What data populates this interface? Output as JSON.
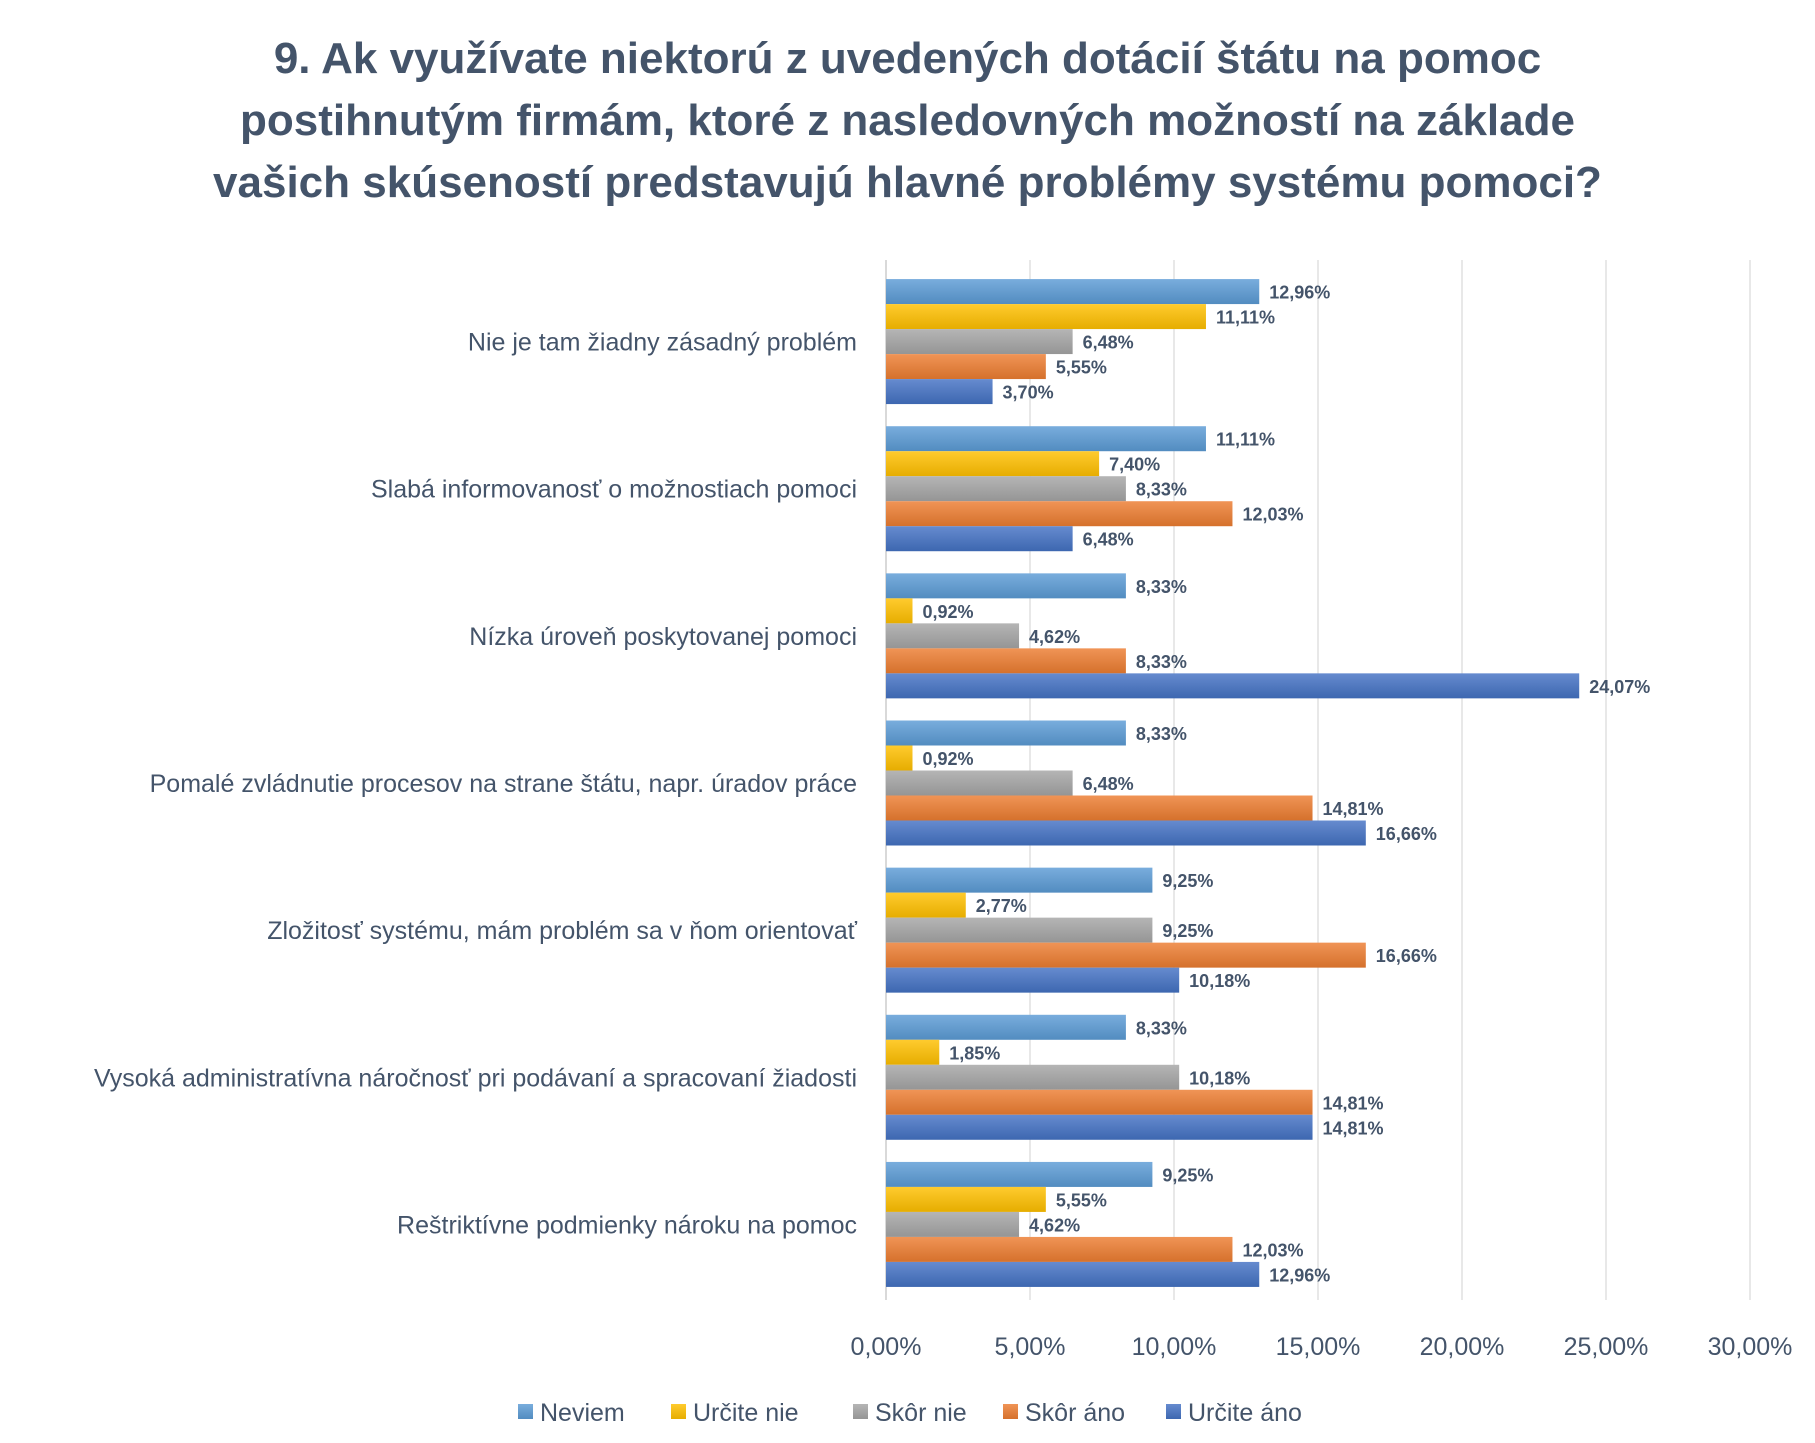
{
  "chart_data": {
    "type": "bar",
    "orientation": "horizontal",
    "title_lines": [
      "9. Ak využívate niektorú z uvedených dotácií štátu na pomoc",
      "postihnutým firmám, ktoré z nasledovných možností na základe",
      "vašich skúseností predstavujú hlavné problémy systému pomoci?"
    ],
    "categories": [
      "Nie je tam žiadny zásadný problém",
      "Slabá informovanosť o možnostiach pomoci",
      "Nízka úroveň poskytovanej pomoci",
      "Pomalé zvládnutie procesov na strane štátu, napr. úradov práce",
      "Zložitosť systému, mám problém sa v ňom orientovať",
      "Vysoká administratívna náročnosť pri podávaní a spracovaní žiadosti",
      "Reštriktívne podmienky nároku na pomoc"
    ],
    "series": [
      {
        "name": "Neviem",
        "color": "#5b9bd5",
        "values": [
          12.96,
          11.11,
          8.33,
          8.33,
          9.25,
          8.33,
          9.25
        ],
        "labels": [
          "12,96%",
          "11,11%",
          "8,33%",
          "8,33%",
          "9,25%",
          "8,33%",
          "9,25%"
        ]
      },
      {
        "name": "Určite nie",
        "color": "#ffc000",
        "values": [
          11.11,
          7.4,
          0.92,
          0.92,
          2.77,
          1.85,
          5.55
        ],
        "labels": [
          "11,11%",
          "7,40%",
          "0,92%",
          "0,92%",
          "2,77%",
          "1,85%",
          "5,55%"
        ]
      },
      {
        "name": "Skôr nie",
        "color": "#a5a5a5",
        "values": [
          6.48,
          8.33,
          4.62,
          6.48,
          9.25,
          10.18,
          4.62
        ],
        "labels": [
          "6,48%",
          "8,33%",
          "4,62%",
          "6,48%",
          "9,25%",
          "10,18%",
          "4,62%"
        ]
      },
      {
        "name": "Skôr áno",
        "color": "#ed7d31",
        "values": [
          5.55,
          12.03,
          8.33,
          14.81,
          16.66,
          14.81,
          12.03
        ],
        "labels": [
          "5,55%",
          "12,03%",
          "8,33%",
          "14,81%",
          "16,66%",
          "14,81%",
          "12,03%"
        ]
      },
      {
        "name": "Určite áno",
        "color": "#4472c4",
        "values": [
          3.7,
          6.48,
          24.07,
          16.66,
          10.18,
          14.81,
          12.96
        ],
        "labels": [
          "3,70%",
          "6,48%",
          "24,07%",
          "16,66%",
          "10,18%",
          "14,81%",
          "12,96%"
        ]
      }
    ],
    "xlim": [
      0,
      30
    ],
    "xticks": [
      0,
      5,
      10,
      15,
      20,
      25,
      30
    ],
    "xtick_labels": [
      "0,00%",
      "5,00%",
      "10,00%",
      "15,00%",
      "20,00%",
      "25,00%",
      "30,00%"
    ],
    "xlabel": "",
    "ylabel": "",
    "grid": "vertical",
    "legend_position": "bottom"
  }
}
